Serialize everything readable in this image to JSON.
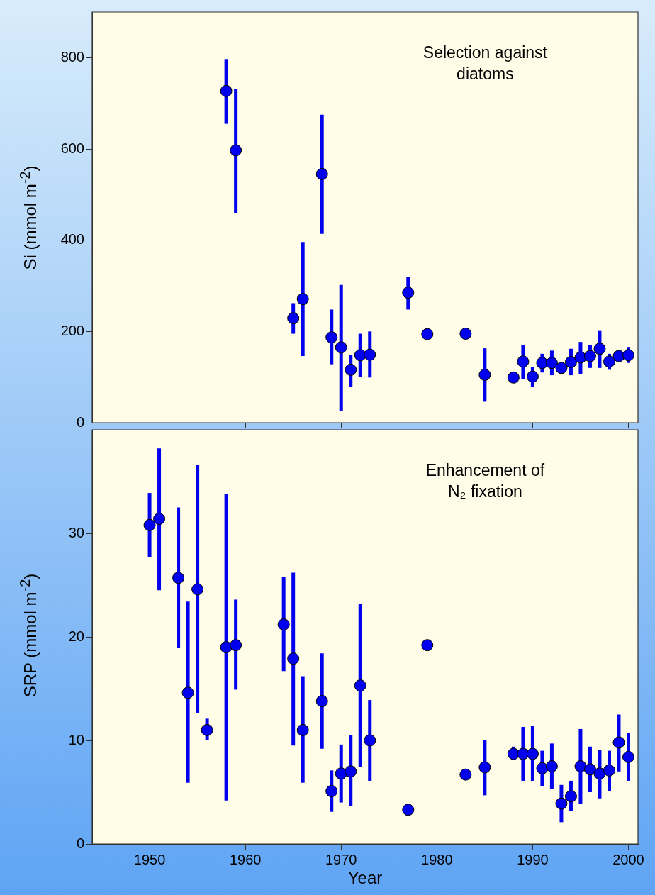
{
  "chart_data": [
    {
      "type": "scatter",
      "ylabel": "Si (mmol m$^{-2}$)",
      "annotations": [
        "Selection against diatoms"
      ],
      "marker": "circle",
      "color": "#0000ee",
      "xlim": [
        1944,
        2001
      ],
      "xticks": [
        1950,
        1960,
        1970,
        1980,
        1990,
        2000
      ],
      "ylim": [
        0,
        900
      ],
      "yticks": [
        0,
        200,
        400,
        600,
        800
      ],
      "tick_labels": "y",
      "x": [
        1958,
        1959,
        1965,
        1966,
        1968,
        1969,
        1970,
        1971,
        1972,
        1973,
        1977,
        1979,
        1983,
        1985,
        1988,
        1989,
        1990,
        1991,
        1992,
        1993,
        1994,
        1995,
        1996,
        1997,
        1998,
        1999,
        2000
      ],
      "values": [
        727,
        597,
        229,
        271,
        545,
        187,
        165,
        116,
        148,
        149,
        285,
        194,
        195,
        105,
        99,
        134,
        101,
        131,
        131,
        120,
        133,
        143,
        146,
        162,
        134,
        146,
        148
      ],
      "errors": [
        [
          655,
          797
        ],
        [
          460,
          731
        ],
        [
          195,
          262
        ],
        [
          146,
          396
        ],
        [
          414,
          675
        ],
        [
          128,
          248
        ],
        [
          26,
          302
        ],
        [
          78,
          149
        ],
        [
          101,
          195
        ],
        [
          99,
          200
        ],
        [
          248,
          320
        ],
        null,
        null,
        [
          46,
          163
        ],
        null,
        [
          96,
          171
        ],
        [
          79,
          122
        ],
        [
          110,
          151
        ],
        [
          104,
          158
        ],
        null,
        [
          104,
          162
        ],
        [
          107,
          177
        ],
        [
          120,
          171
        ],
        [
          120,
          201
        ],
        [
          116,
          151
        ],
        null,
        [
          131,
          166
        ]
      ]
    },
    {
      "type": "scatter",
      "ylabel": "SRP (mmol m$^{-2}$)",
      "xlabel": "Year",
      "annotations": [
        "Enhancement of N₂ fixation"
      ],
      "marker": "circle",
      "color": "#0000ee",
      "xlim": [
        1944,
        2001
      ],
      "xticks": [
        1950,
        1960,
        1970,
        1980,
        1990,
        2000
      ],
      "ylim": [
        0,
        40
      ],
      "yticks": [
        0,
        10,
        20,
        30
      ],
      "x": [
        1950,
        1951,
        1953,
        1954,
        1955,
        1956,
        1958,
        1959,
        1964,
        1965,
        1966,
        1968,
        1969,
        1970,
        1971,
        1972,
        1973,
        1977,
        1979,
        1983,
        1985,
        1988,
        1989,
        1990,
        1991,
        1992,
        1993,
        1994,
        1995,
        1996,
        1997,
        1998,
        1999,
        2000
      ],
      "values": [
        30.8,
        31.4,
        25.7,
        14.6,
        24.6,
        11.0,
        19.0,
        19.2,
        21.2,
        17.9,
        11.0,
        13.8,
        5.1,
        6.8,
        7.0,
        15.3,
        10.0,
        3.3,
        19.2,
        6.7,
        7.4,
        8.7,
        8.7,
        8.7,
        7.3,
        7.5,
        3.9,
        4.6,
        7.5,
        7.2,
        6.8,
        7.1,
        9.8,
        8.4
      ],
      "errors": [
        [
          27.7,
          33.9
        ],
        [
          24.5,
          38.2
        ],
        [
          18.9,
          32.5
        ],
        [
          5.9,
          23.4
        ],
        [
          12.6,
          36.6
        ],
        [
          10.0,
          12.1
        ],
        [
          4.2,
          33.8
        ],
        [
          14.9,
          23.6
        ],
        [
          16.7,
          25.8
        ],
        [
          9.5,
          26.2
        ],
        [
          5.9,
          16.2
        ],
        [
          9.2,
          18.4
        ],
        [
          3.1,
          7.1
        ],
        [
          4.0,
          9.6
        ],
        [
          3.7,
          10.5
        ],
        [
          7.4,
          23.2
        ],
        [
          6.1,
          13.9
        ],
        null,
        null,
        null,
        [
          4.7,
          10.0
        ],
        [
          8.1,
          9.4
        ],
        [
          6.1,
          11.3
        ],
        [
          6.1,
          11.4
        ],
        [
          5.6,
          9.0
        ],
        [
          5.3,
          9.7
        ],
        [
          2.1,
          5.7
        ],
        [
          3.2,
          6.1
        ],
        [
          3.9,
          11.1
        ],
        [
          5.0,
          9.4
        ],
        [
          4.4,
          9.1
        ],
        [
          5.1,
          9.0
        ],
        [
          7.0,
          12.5
        ],
        [
          6.1,
          10.7
        ]
      ]
    }
  ]
}
